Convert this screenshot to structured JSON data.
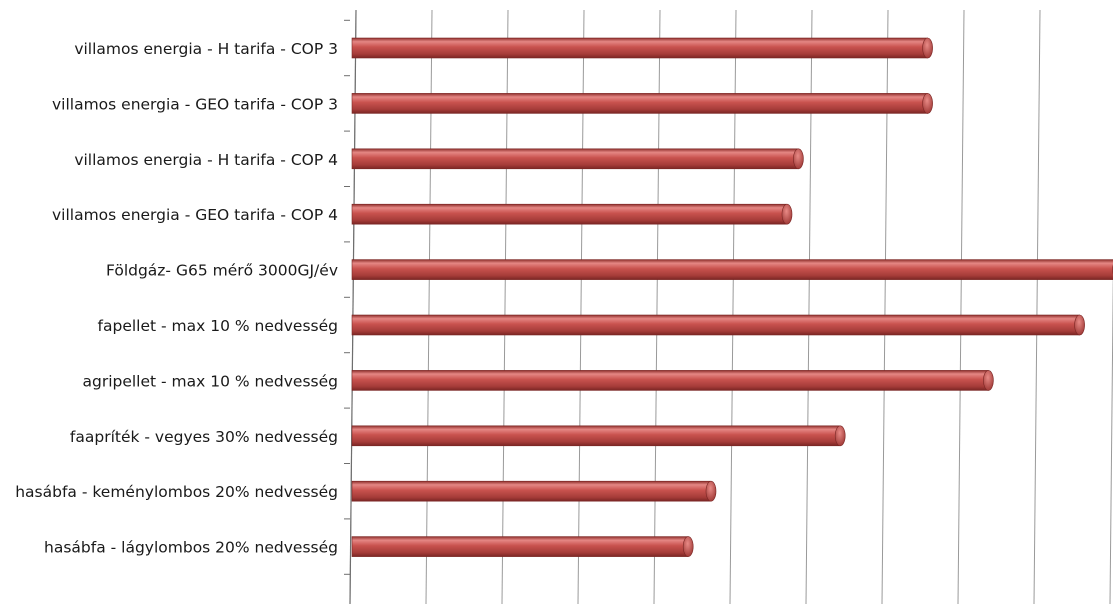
{
  "chart_data": {
    "type": "bar",
    "orientation": "horizontal",
    "style": "3d-cylinder",
    "bar_color": "#c0504d",
    "categories": [
      "villamos energia - H tarifa - COP 3",
      "villamos energia - GEO tarifa - COP 3",
      "villamos energia - H tarifa - COP 4",
      "villamos energia - GEO tarifa - COP 4",
      "Földgáz- G65 mérő 3000GJ/év",
      "fapellet - max 10 % nedvesség",
      "agripellet - max 10 % nedvesség",
      "faapríték - vegyes 30% nedvesség",
      "hasábfa - keménylombos 20% nedvesség",
      "hasábfa - lágylombos 20% nedvesség"
    ],
    "values": [
      7.6,
      7.6,
      5.9,
      5.75,
      10.1,
      9.6,
      8.4,
      6.45,
      4.75,
      4.45
    ],
    "xlim": [
      0,
      10
    ],
    "grid": true
  }
}
